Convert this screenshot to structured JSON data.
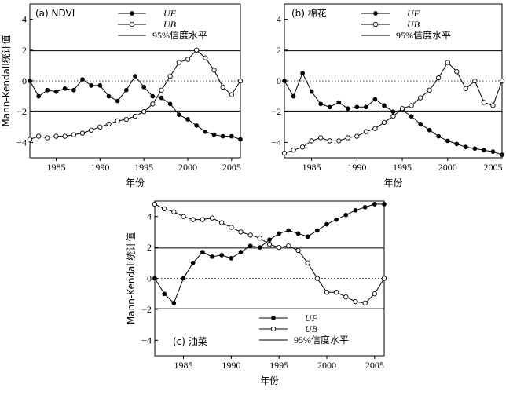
{
  "chart_data": [
    {
      "type": "line",
      "panel_label": "(a) NDVI",
      "xlabel": "年份",
      "ylabel": "Mann-Kendall统计值",
      "xlim": [
        1982,
        2006
      ],
      "ylim": [
        -5,
        5
      ],
      "xticks": [
        1985,
        1990,
        1995,
        2000,
        2005
      ],
      "yticks": [
        -4,
        -2,
        0,
        2,
        4
      ],
      "legend_position": "top-center",
      "reference_lines": {
        "name": "95%信度水平",
        "values": [
          1.96,
          -1.96
        ]
      },
      "x": [
        1982,
        1983,
        1984,
        1985,
        1986,
        1987,
        1988,
        1989,
        1990,
        1991,
        1992,
        1993,
        1994,
        1995,
        1996,
        1997,
        1998,
        1999,
        2000,
        2001,
        2002,
        2003,
        2004,
        2005,
        2006
      ],
      "series": [
        {
          "name": "UF",
          "marker": "filled-circle",
          "values": [
            0.0,
            -1.0,
            -0.6,
            -0.7,
            -0.5,
            -0.6,
            0.1,
            -0.3,
            -0.3,
            -1.0,
            -1.3,
            -0.6,
            0.3,
            -0.4,
            -1.0,
            -1.1,
            -1.5,
            -2.2,
            -2.5,
            -2.9,
            -3.3,
            -3.5,
            -3.6,
            -3.6,
            -3.8
          ]
        },
        {
          "name": "UB",
          "marker": "open-circle",
          "values": [
            -3.8,
            -3.6,
            -3.7,
            -3.6,
            -3.6,
            -3.5,
            -3.4,
            -3.2,
            -3.0,
            -2.8,
            -2.6,
            -2.5,
            -2.3,
            -2.0,
            -1.5,
            -0.6,
            0.3,
            1.2,
            1.4,
            2.0,
            1.5,
            0.7,
            -0.4,
            -0.9,
            0.0
          ]
        }
      ]
    },
    {
      "type": "line",
      "panel_label": "(b) 棉花",
      "xlabel": "年份",
      "ylabel": "",
      "xlim": [
        1982,
        2006
      ],
      "ylim": [
        -5,
        5
      ],
      "xticks": [
        1985,
        1990,
        1995,
        2000,
        2005
      ],
      "yticks": [
        -4,
        -2,
        0,
        2,
        4
      ],
      "legend_position": "top-right",
      "reference_lines": {
        "name": "95%信度水平",
        "values": [
          1.96,
          -1.96
        ]
      },
      "x": [
        1982,
        1983,
        1984,
        1985,
        1986,
        1987,
        1988,
        1989,
        1990,
        1991,
        1992,
        1993,
        1994,
        1995,
        1996,
        1997,
        1998,
        1999,
        2000,
        2001,
        2002,
        2003,
        2004,
        2005,
        2006
      ],
      "series": [
        {
          "name": "UF",
          "marker": "filled-circle",
          "values": [
            0.0,
            -1.0,
            0.5,
            -0.7,
            -1.5,
            -1.7,
            -1.4,
            -1.8,
            -1.7,
            -1.7,
            -1.2,
            -1.6,
            -2.0,
            -1.9,
            -2.3,
            -2.8,
            -3.2,
            -3.6,
            -3.9,
            -4.1,
            -4.3,
            -4.4,
            -4.5,
            -4.6,
            -4.8
          ]
        },
        {
          "name": "UB",
          "marker": "open-circle",
          "values": [
            -4.7,
            -4.5,
            -4.3,
            -3.9,
            -3.7,
            -3.9,
            -3.9,
            -3.7,
            -3.6,
            -3.3,
            -3.1,
            -2.7,
            -2.3,
            -1.8,
            -1.6,
            -1.1,
            -0.6,
            0.2,
            1.2,
            0.6,
            -0.5,
            0.0,
            -1.4,
            -1.6,
            0.0
          ]
        }
      ]
    },
    {
      "type": "line",
      "panel_label": "(c) 油菜",
      "xlabel": "年份",
      "ylabel": "Mann-Kendall统计值",
      "xlim": [
        1982,
        2006
      ],
      "ylim": [
        -5,
        5
      ],
      "xticks": [
        1985,
        1990,
        1995,
        2000,
        2005
      ],
      "yticks": [
        -4,
        -2,
        0,
        2,
        4
      ],
      "legend_position": "bottom-center",
      "reference_lines": {
        "name": "95%信度水平",
        "values": [
          1.96,
          -1.96
        ]
      },
      "x": [
        1982,
        1983,
        1984,
        1985,
        1986,
        1987,
        1988,
        1989,
        1990,
        1991,
        1992,
        1993,
        1994,
        1995,
        1996,
        1997,
        1998,
        1999,
        2000,
        2001,
        2002,
        2003,
        2004,
        2005,
        2006
      ],
      "series": [
        {
          "name": "UF",
          "marker": "filled-circle",
          "values": [
            0.0,
            -1.0,
            -1.6,
            0.0,
            1.0,
            1.7,
            1.4,
            1.5,
            1.3,
            1.7,
            2.1,
            2.0,
            2.5,
            2.9,
            3.1,
            2.9,
            2.7,
            3.1,
            3.5,
            3.8,
            4.1,
            4.4,
            4.6,
            4.8,
            4.8
          ]
        },
        {
          "name": "UB",
          "marker": "open-circle",
          "values": [
            4.8,
            4.5,
            4.3,
            4.0,
            3.8,
            3.8,
            3.9,
            3.6,
            3.3,
            3.0,
            2.8,
            2.6,
            2.2,
            2.0,
            2.1,
            1.8,
            1.0,
            0.0,
            -0.9,
            -0.9,
            -1.2,
            -1.5,
            -1.6,
            -1.0,
            0.0
          ]
        }
      ]
    }
  ]
}
